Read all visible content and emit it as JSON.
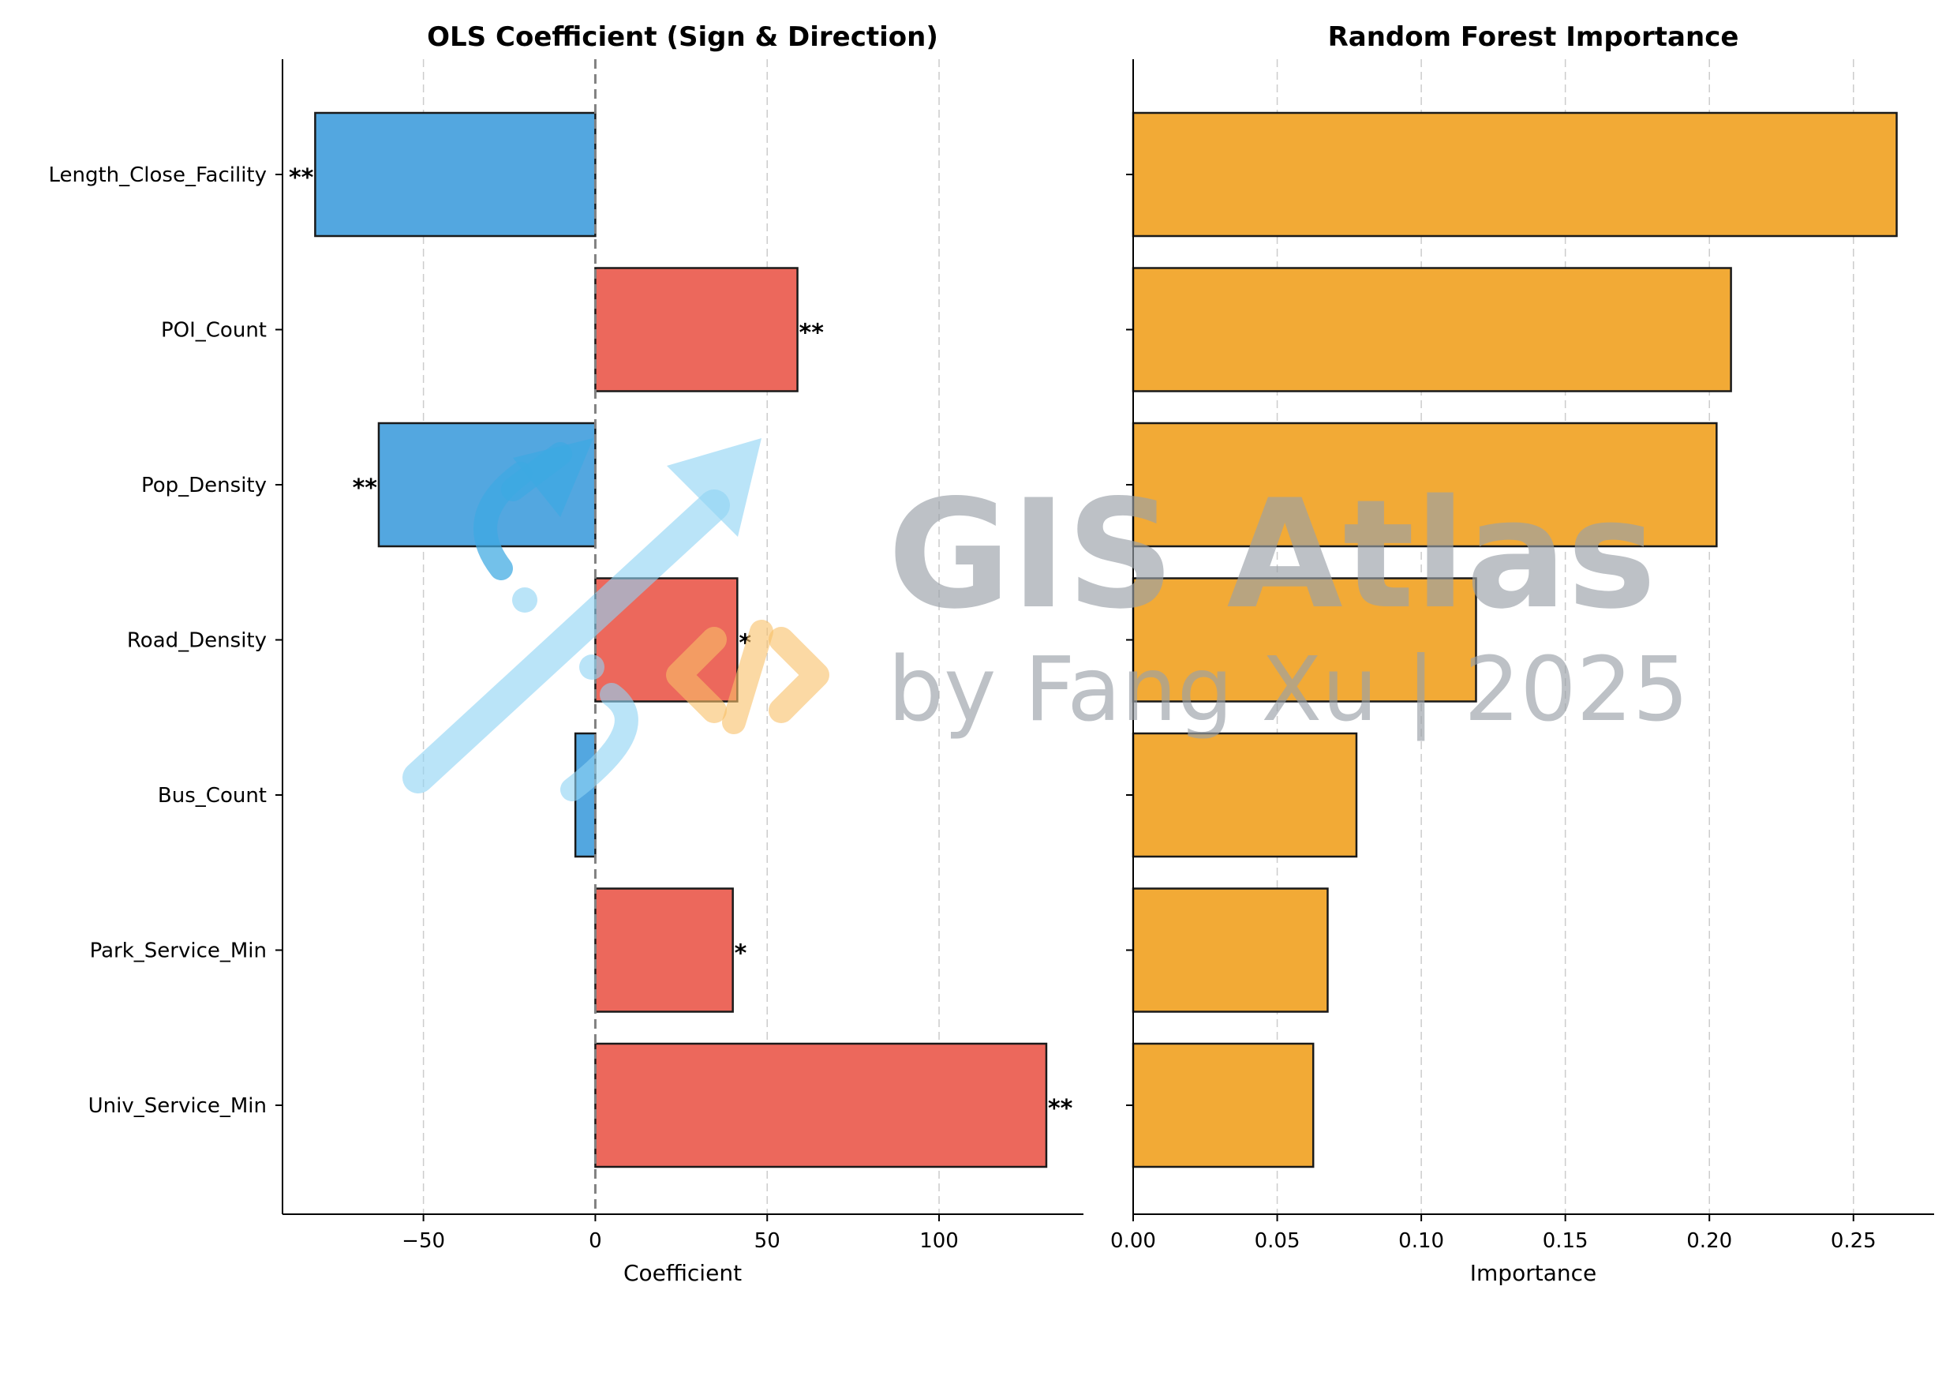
{
  "colors": {
    "positive": "#EC685C",
    "negative": "#53A7E0",
    "importance": "#F2AA36",
    "edge": "#1a1a1a",
    "grid": "#cccccc",
    "zero_line": "#808080",
    "watermark_text": "#9aa1a8",
    "watermark_arrow": "#8fd3f4",
    "watermark_code": "#f9c067"
  },
  "watermark": {
    "title": "GIS Atlas",
    "subtitle": "by Fang Xu | 2025",
    "icons": [
      "trend-arrow-icon",
      "code-brackets-icon"
    ]
  },
  "chart_data": [
    {
      "type": "bar",
      "orientation": "horizontal",
      "title": "OLS Coefficient (Sign & Direction)",
      "xlabel": "Coefficient",
      "ylabel": "",
      "categories": [
        "Length_Close_Facility",
        "POI_Count",
        "Pop_Density",
        "Road_Density",
        "Bus_Count",
        "Park_Service_Min",
        "Univ_Service_Min"
      ],
      "values": [
        -81.5,
        58.8,
        -63.0,
        41.3,
        -5.8,
        40.0,
        131.2
      ],
      "significance": [
        "**",
        "**",
        "**",
        "*",
        "",
        "*",
        "**"
      ],
      "xlim": [
        -91,
        142
      ],
      "xticks": [
        -50,
        0,
        50,
        100
      ],
      "xtick_labels": [
        "−50",
        "0",
        "50",
        "100"
      ],
      "zero_line": true,
      "grid": "x-dashed"
    },
    {
      "type": "bar",
      "orientation": "horizontal",
      "title": "Random Forest Importance",
      "xlabel": "Importance",
      "ylabel": "",
      "categories": [
        "Length_Close_Facility",
        "POI_Count",
        "Pop_Density",
        "Road_Density",
        "Bus_Count",
        "Park_Service_Min",
        "Univ_Service_Min"
      ],
      "values": [
        0.265,
        0.2075,
        0.2025,
        0.119,
        0.0775,
        0.0675,
        0.0625
      ],
      "xlim": [
        0.0,
        0.278
      ],
      "xticks": [
        0.0,
        0.05,
        0.1,
        0.15,
        0.2,
        0.25
      ],
      "xtick_labels": [
        "0.00",
        "0.05",
        "0.10",
        "0.15",
        "0.20",
        "0.25"
      ],
      "grid": "x-dashed"
    }
  ]
}
